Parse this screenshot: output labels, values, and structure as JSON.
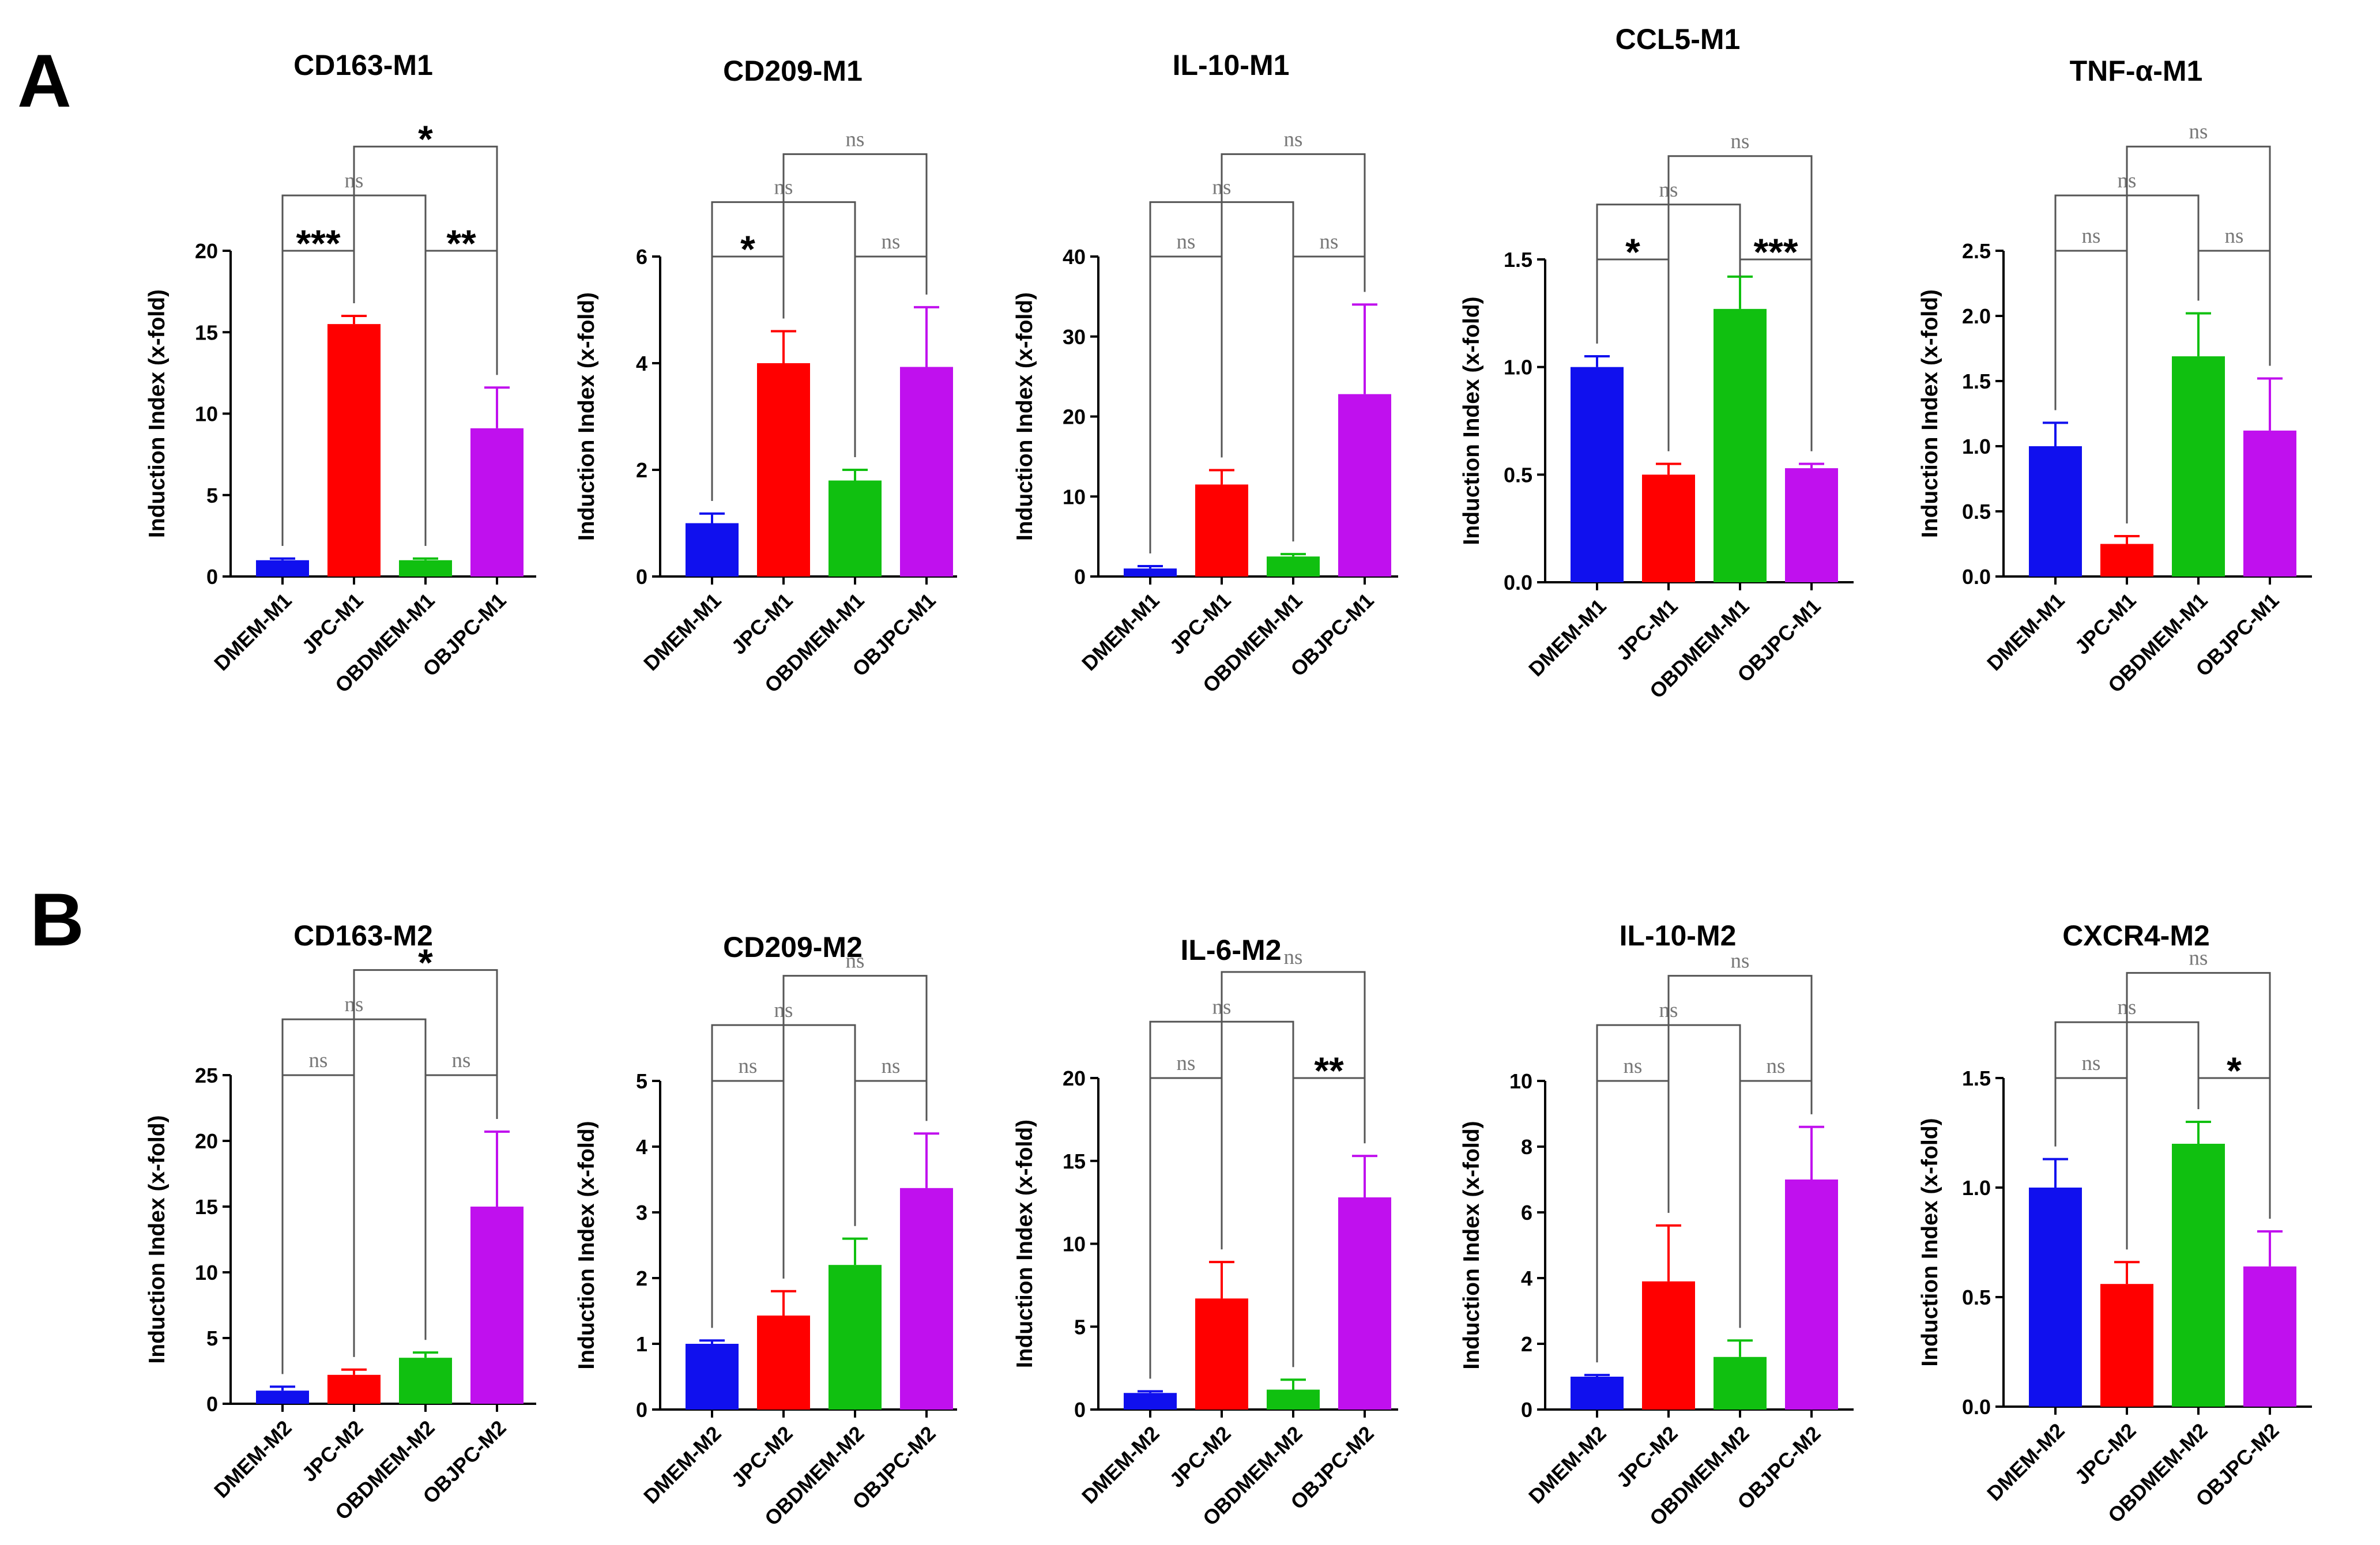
{
  "panel_labels": [
    "A",
    "B"
  ],
  "chart_data": [
    {
      "panel": "A",
      "type": "bar",
      "title": "CD163-M1",
      "ylabel": "Induction Index (x-fold)",
      "xlabel": "",
      "categories": [
        "DMEM-M1",
        "JPC-M1",
        "OBDMEM-M1",
        "OBJPC-M1"
      ],
      "colors": [
        "#1010ee",
        "#ff0000",
        "#10c010",
        "#c010ee"
      ],
      "values": [
        1.0,
        15.5,
        1.0,
        9.1
      ],
      "errors": [
        0.1,
        0.5,
        0.1,
        2.5
      ],
      "ylim": [
        0,
        20
      ],
      "yticks": [
        "0",
        "5",
        "10",
        "15",
        "20"
      ],
      "comparisons": [
        {
          "a": 0,
          "b": 1,
          "label": "***"
        },
        {
          "a": 2,
          "b": 3,
          "label": "**"
        },
        {
          "a": 0,
          "b": 2,
          "label": "ns"
        },
        {
          "a": 1,
          "b": 3,
          "label": "*"
        }
      ]
    },
    {
      "panel": "A",
      "type": "bar",
      "title": "CD209-M1",
      "ylabel": "Induction Index (x-fold)",
      "xlabel": "",
      "categories": [
        "DMEM-M1",
        "JPC-M1",
        "OBDMEM-M1",
        "OBJPC-M1"
      ],
      "colors": [
        "#1010ee",
        "#ff0000",
        "#10c010",
        "#c010ee"
      ],
      "values": [
        1.0,
        4.0,
        1.8,
        3.93
      ],
      "errors": [
        0.18,
        0.6,
        0.2,
        1.12
      ],
      "ylim": [
        0,
        6
      ],
      "yticks": [
        "0",
        "2",
        "4",
        "6"
      ],
      "comparisons": [
        {
          "a": 0,
          "b": 1,
          "label": "*"
        },
        {
          "a": 2,
          "b": 3,
          "label": "ns"
        },
        {
          "a": 0,
          "b": 2,
          "label": "ns"
        },
        {
          "a": 1,
          "b": 3,
          "label": "ns"
        }
      ]
    },
    {
      "panel": "A",
      "type": "bar",
      "title": "IL-10-M1",
      "ylabel": "Induction Index (x-fold)",
      "xlabel": "",
      "categories": [
        "DMEM-M1",
        "JPC-M1",
        "OBDMEM-M1",
        "OBJPC-M1"
      ],
      "colors": [
        "#1010ee",
        "#ff0000",
        "#10c010",
        "#c010ee"
      ],
      "values": [
        1.0,
        11.5,
        2.5,
        22.8
      ],
      "errors": [
        0.3,
        1.8,
        0.3,
        11.2
      ],
      "ylim": [
        0,
        40
      ],
      "yticks": [
        "0",
        "10",
        "20",
        "30",
        "40"
      ],
      "comparisons": [
        {
          "a": 0,
          "b": 1,
          "label": "ns"
        },
        {
          "a": 2,
          "b": 3,
          "label": "ns"
        },
        {
          "a": 0,
          "b": 2,
          "label": "ns"
        },
        {
          "a": 1,
          "b": 3,
          "label": "ns"
        }
      ]
    },
    {
      "panel": "A",
      "type": "bar",
      "title": "CCL5-M1",
      "ylabel": "Induction Index (x-fold)",
      "xlabel": "",
      "categories": [
        "DMEM-M1",
        "JPC-M1",
        "OBDMEM-M1",
        "OBJPC-M1"
      ],
      "colors": [
        "#1010ee",
        "#ff0000",
        "#10c010",
        "#c010ee"
      ],
      "values": [
        1.0,
        0.5,
        1.27,
        0.53
      ],
      "errors": [
        0.05,
        0.05,
        0.15,
        0.02
      ],
      "ylim": [
        0,
        1.5
      ],
      "yticks": [
        "0.0",
        "0.5",
        "1.0",
        "1.5"
      ],
      "comparisons": [
        {
          "a": 0,
          "b": 1,
          "label": "*"
        },
        {
          "a": 2,
          "b": 3,
          "label": "***"
        },
        {
          "a": 0,
          "b": 2,
          "label": "ns"
        },
        {
          "a": 1,
          "b": 3,
          "label": "ns"
        }
      ]
    },
    {
      "panel": "A",
      "type": "bar",
      "title": "TNF-α-M1",
      "ylabel": "Induction Index (x-fold)",
      "xlabel": "",
      "categories": [
        "DMEM-M1",
        "JPC-M1",
        "OBDMEM-M1",
        "OBJPC-M1"
      ],
      "colors": [
        "#1010ee",
        "#ff0000",
        "#10c010",
        "#c010ee"
      ],
      "values": [
        1.0,
        0.25,
        1.69,
        1.12
      ],
      "errors": [
        0.18,
        0.06,
        0.33,
        0.4
      ],
      "ylim": [
        0,
        2.5
      ],
      "yticks": [
        "0.0",
        "0.5",
        "1.0",
        "1.5",
        "2.0",
        "2.5"
      ],
      "comparisons": [
        {
          "a": 0,
          "b": 1,
          "label": "ns"
        },
        {
          "a": 2,
          "b": 3,
          "label": "ns"
        },
        {
          "a": 0,
          "b": 2,
          "label": "ns"
        },
        {
          "a": 1,
          "b": 3,
          "label": "ns"
        }
      ]
    },
    {
      "panel": "B",
      "type": "bar",
      "title": "CD163-M2",
      "ylabel": "Induction Index (x-fold)",
      "xlabel": "",
      "categories": [
        "DMEM-M2",
        "JPC-M2",
        "OBDMEM-M2",
        "OBJPC-M2"
      ],
      "colors": [
        "#1010ee",
        "#ff0000",
        "#10c010",
        "#c010ee"
      ],
      "values": [
        1.0,
        2.2,
        3.5,
        15.0
      ],
      "errors": [
        0.3,
        0.4,
        0.4,
        5.7
      ],
      "ylim": [
        0,
        25
      ],
      "yticks": [
        "0",
        "5",
        "10",
        "15",
        "20",
        "25"
      ],
      "comparisons": [
        {
          "a": 0,
          "b": 1,
          "label": "ns"
        },
        {
          "a": 2,
          "b": 3,
          "label": "ns"
        },
        {
          "a": 0,
          "b": 2,
          "label": "ns"
        },
        {
          "a": 1,
          "b": 3,
          "label": "*"
        }
      ]
    },
    {
      "panel": "B",
      "type": "bar",
      "title": "CD209-M2",
      "ylabel": "Induction Index (x-fold)",
      "xlabel": "",
      "categories": [
        "DMEM-M2",
        "JPC-M2",
        "OBDMEM-M2",
        "OBJPC-M2"
      ],
      "colors": [
        "#1010ee",
        "#ff0000",
        "#10c010",
        "#c010ee"
      ],
      "values": [
        1.0,
        1.43,
        2.2,
        3.37
      ],
      "errors": [
        0.05,
        0.37,
        0.4,
        0.83
      ],
      "ylim": [
        0,
        5
      ],
      "yticks": [
        "0",
        "1",
        "2",
        "3",
        "4",
        "5"
      ],
      "comparisons": [
        {
          "a": 0,
          "b": 1,
          "label": "ns"
        },
        {
          "a": 2,
          "b": 3,
          "label": "ns"
        },
        {
          "a": 0,
          "b": 2,
          "label": "ns"
        },
        {
          "a": 1,
          "b": 3,
          "label": "ns"
        }
      ]
    },
    {
      "panel": "B",
      "type": "bar",
      "title": "IL-6-M2",
      "ylabel": "Induction Index (x-fold)",
      "xlabel": "",
      "categories": [
        "DMEM-M2",
        "JPC-M2",
        "OBDMEM-M2",
        "OBJPC-M2"
      ],
      "colors": [
        "#1010ee",
        "#ff0000",
        "#10c010",
        "#c010ee"
      ],
      "values": [
        1.0,
        6.7,
        1.2,
        12.8
      ],
      "errors": [
        0.1,
        2.2,
        0.6,
        2.5
      ],
      "ylim": [
        0,
        20
      ],
      "yticks": [
        "0",
        "5",
        "10",
        "15",
        "20"
      ],
      "comparisons": [
        {
          "a": 0,
          "b": 1,
          "label": "ns"
        },
        {
          "a": 2,
          "b": 3,
          "label": "**"
        },
        {
          "a": 0,
          "b": 2,
          "label": "ns"
        },
        {
          "a": 1,
          "b": 3,
          "label": "ns"
        }
      ]
    },
    {
      "panel": "B",
      "type": "bar",
      "title": "IL-10-M2",
      "ylabel": "Induction Index (x-fold)",
      "xlabel": "",
      "categories": [
        "DMEM-M2",
        "JPC-M2",
        "OBDMEM-M2",
        "OBJPC-M2"
      ],
      "colors": [
        "#1010ee",
        "#ff0000",
        "#10c010",
        "#c010ee"
      ],
      "values": [
        1.0,
        3.9,
        1.6,
        7.0
      ],
      "errors": [
        0.05,
        1.7,
        0.5,
        1.6
      ],
      "ylim": [
        0,
        10
      ],
      "yticks": [
        "0",
        "2",
        "4",
        "6",
        "8",
        "10"
      ],
      "comparisons": [
        {
          "a": 0,
          "b": 1,
          "label": "ns"
        },
        {
          "a": 2,
          "b": 3,
          "label": "ns"
        },
        {
          "a": 0,
          "b": 2,
          "label": "ns"
        },
        {
          "a": 1,
          "b": 3,
          "label": "ns"
        }
      ]
    },
    {
      "panel": "B",
      "type": "bar",
      "title": "CXCR4-M2",
      "ylabel": "Induction Index (x-fold)",
      "xlabel": "",
      "categories": [
        "DMEM-M2",
        "JPC-M2",
        "OBDMEM-M2",
        "OBJPC-M2"
      ],
      "colors": [
        "#1010ee",
        "#ff0000",
        "#10c010",
        "#c010ee"
      ],
      "values": [
        1.0,
        0.56,
        1.2,
        0.64
      ],
      "errors": [
        0.13,
        0.1,
        0.1,
        0.16
      ],
      "ylim": [
        0,
        1.5
      ],
      "yticks": [
        "0.0",
        "0.5",
        "1.0",
        "1.5"
      ],
      "comparisons": [
        {
          "a": 0,
          "b": 1,
          "label": "ns"
        },
        {
          "a": 2,
          "b": 3,
          "label": "*"
        },
        {
          "a": 0,
          "b": 2,
          "label": "ns"
        },
        {
          "a": 1,
          "b": 3,
          "label": "ns"
        }
      ]
    }
  ]
}
